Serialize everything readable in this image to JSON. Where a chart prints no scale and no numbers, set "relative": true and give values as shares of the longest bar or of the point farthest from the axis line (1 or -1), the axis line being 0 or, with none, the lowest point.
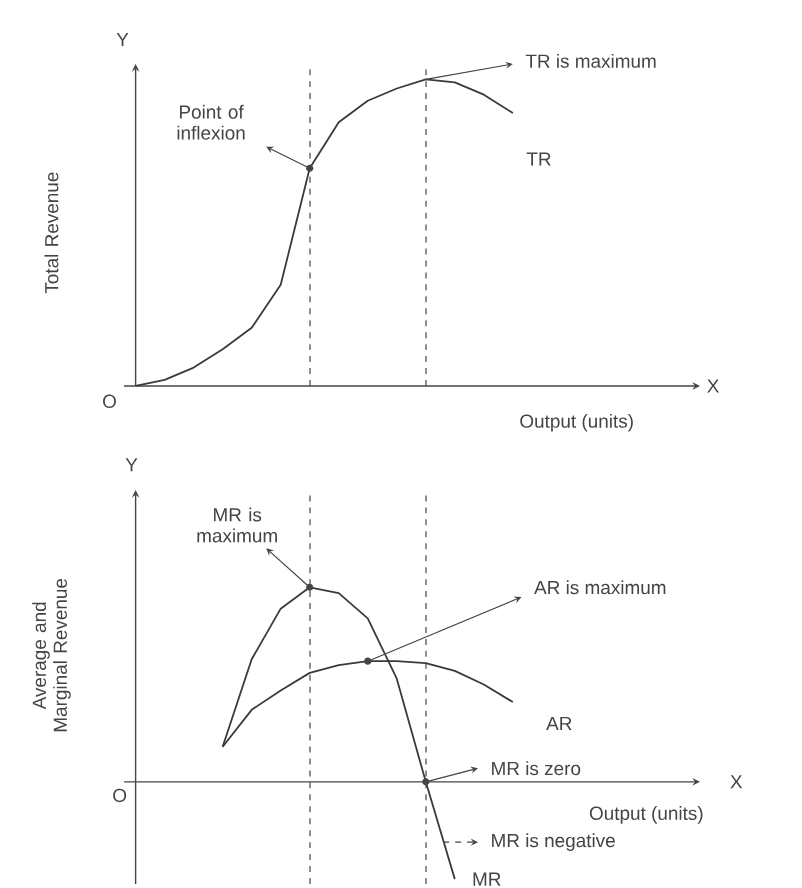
{
  "chart_data": [
    {
      "type": "line",
      "relative": true,
      "xlabel": "Output (units)",
      "ylabel": "Total Revenue",
      "categories": [
        null,
        null,
        null,
        null,
        null,
        null,
        null,
        null,
        null,
        null,
        null,
        null,
        null,
        null,
        null,
        null,
        null,
        null,
        null,
        null
      ],
      "series": [
        {
          "name": "TR",
          "color": "#3a3a3a",
          "values": [
            0,
            0.02,
            0.06,
            0.12,
            0.19,
            0.33,
            0.71,
            0.86,
            0.93,
            0.97,
            1.0,
            0.99,
            0.95,
            0.89,
            null,
            null,
            null,
            null,
            null,
            null
          ]
        }
      ],
      "annotations": [
        "Point of inflexion",
        "TR is maximum",
        "Y",
        "X",
        "O"
      ]
    },
    {
      "type": "line",
      "relative": true,
      "xlabel": "Output (units)",
      "ylabel": "Average and Marginal Revenue",
      "categories": [
        null,
        null,
        null,
        null,
        null,
        null,
        null,
        null,
        null,
        null,
        null,
        null,
        null,
        null,
        null,
        null,
        null,
        null,
        null,
        null
      ],
      "series": [
        {
          "name": "AR",
          "color": "#3a3a3a",
          "values": [
            null,
            null,
            null,
            0.18,
            0.37,
            0.47,
            0.56,
            0.6,
            0.62,
            0.62,
            0.61,
            0.57,
            0.5,
            0.41,
            null,
            null,
            null,
            null,
            null,
            null
          ]
        },
        {
          "name": "MR",
          "color": "#3a3a3a",
          "values": [
            null,
            null,
            null,
            0.18,
            0.63,
            0.89,
            1.0,
            0.97,
            0.84,
            0.53,
            0.0,
            -0.5,
            null,
            null,
            null,
            null,
            null,
            null,
            null,
            null
          ]
        }
      ],
      "annotations": [
        "MR is maximum",
        "AR is maximum",
        "MR is zero",
        "MR is negative",
        "Y",
        "X",
        "O"
      ]
    }
  ]
}
